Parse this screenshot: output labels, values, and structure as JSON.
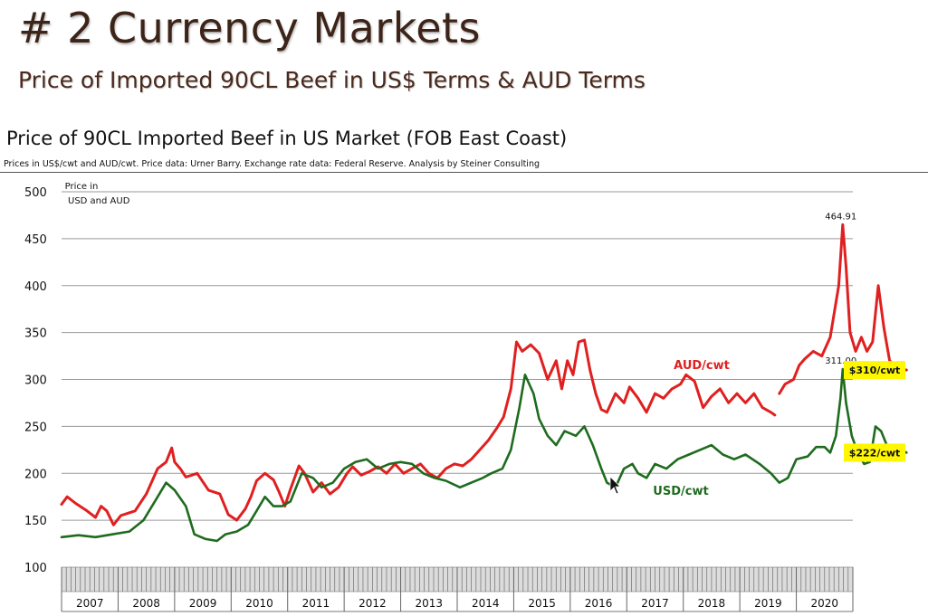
{
  "slide": {
    "title": "# 2 Currency Markets",
    "subtitle": "Price of Imported 90CL Beef in US$ Terms & AUD Terms"
  },
  "chart_data": {
    "type": "line",
    "title": "Price of 90CL Imported Beef in US Market (FOB East Coast)",
    "subtitle": "Prices in US$/cwt and AUD/cwt.  Price data:  Urner Barry.  Exchange rate data: Federal Reserve.  Analysis by Steiner Consulting",
    "ylabel_line1": "Price in",
    "ylabel_line2": "USD and AUD",
    "ylim": [
      100,
      500
    ],
    "y_ticks": [
      "100",
      "150",
      "200",
      "250",
      "300",
      "350",
      "400",
      "450",
      "500"
    ],
    "x_start": 2007.0,
    "x_end": 2021.0,
    "x_tick_labels": [
      "2007",
      "2008",
      "2009",
      "2010",
      "2011",
      "2012",
      "2013",
      "2014",
      "2015",
      "2016",
      "2017",
      "2018",
      "2019",
      "2020"
    ],
    "grid": true,
    "series": [
      {
        "name": "AUD/cwt",
        "color": "#e02020",
        "end_label": "$310/cwt",
        "points": [
          [
            2007.0,
            167
          ],
          [
            2007.1,
            175
          ],
          [
            2007.25,
            168
          ],
          [
            2007.45,
            160
          ],
          [
            2007.6,
            153
          ],
          [
            2007.7,
            165
          ],
          [
            2007.8,
            160
          ],
          [
            2007.92,
            145
          ],
          [
            2008.05,
            155
          ],
          [
            2008.3,
            160
          ],
          [
            2008.5,
            178
          ],
          [
            2008.7,
            205
          ],
          [
            2008.85,
            212
          ],
          [
            2008.95,
            227
          ],
          [
            2009.0,
            212
          ],
          [
            2009.1,
            205
          ],
          [
            2009.2,
            196
          ],
          [
            2009.4,
            200
          ],
          [
            2009.6,
            182
          ],
          [
            2009.8,
            178
          ],
          [
            2009.95,
            156
          ],
          [
            2010.1,
            150
          ],
          [
            2010.25,
            162
          ],
          [
            2010.35,
            175
          ],
          [
            2010.45,
            192
          ],
          [
            2010.6,
            200
          ],
          [
            2010.75,
            193
          ],
          [
            2010.85,
            180
          ],
          [
            2010.95,
            165
          ],
          [
            2011.05,
            183
          ],
          [
            2011.2,
            208
          ],
          [
            2011.3,
            200
          ],
          [
            2011.45,
            180
          ],
          [
            2011.6,
            190
          ],
          [
            2011.75,
            178
          ],
          [
            2011.9,
            185
          ],
          [
            2012.05,
            200
          ],
          [
            2012.15,
            207
          ],
          [
            2012.3,
            198
          ],
          [
            2012.45,
            202
          ],
          [
            2012.6,
            207
          ],
          [
            2012.75,
            200
          ],
          [
            2012.9,
            210
          ],
          [
            2013.05,
            200
          ],
          [
            2013.2,
            205
          ],
          [
            2013.35,
            210
          ],
          [
            2013.5,
            200
          ],
          [
            2013.65,
            195
          ],
          [
            2013.8,
            205
          ],
          [
            2013.95,
            210
          ],
          [
            2014.1,
            208
          ],
          [
            2014.25,
            215
          ],
          [
            2014.4,
            225
          ],
          [
            2014.55,
            235
          ],
          [
            2014.7,
            248
          ],
          [
            2014.82,
            260
          ],
          [
            2014.95,
            290
          ],
          [
            2015.05,
            340
          ],
          [
            2015.15,
            330
          ],
          [
            2015.3,
            337
          ],
          [
            2015.45,
            328
          ],
          [
            2015.6,
            300
          ],
          [
            2015.75,
            320
          ],
          [
            2015.85,
            290
          ],
          [
            2015.95,
            320
          ],
          [
            2016.05,
            305
          ],
          [
            2016.15,
            340
          ],
          [
            2016.25,
            342
          ],
          [
            2016.35,
            310
          ],
          [
            2016.45,
            285
          ],
          [
            2016.55,
            268
          ],
          [
            2016.65,
            265
          ],
          [
            2016.8,
            285
          ],
          [
            2016.95,
            275
          ],
          [
            2017.05,
            292
          ],
          [
            2017.2,
            280
          ],
          [
            2017.35,
            265
          ],
          [
            2017.5,
            285
          ],
          [
            2017.65,
            280
          ],
          [
            2017.8,
            290
          ],
          [
            2017.95,
            295
          ],
          [
            2018.05,
            305
          ],
          [
            2018.2,
            298
          ],
          [
            2018.35,
            270
          ],
          [
            2018.5,
            282
          ],
          [
            2018.65,
            290
          ],
          [
            2018.8,
            275
          ],
          [
            2018.95,
            285
          ],
          [
            2019.1,
            275
          ],
          [
            2019.25,
            285
          ],
          [
            2019.4,
            270
          ],
          [
            2019.55,
            265
          ],
          [
            2019.62,
            262
          ],
          null,
          [
            2019.7,
            285
          ],
          [
            2019.8,
            295
          ],
          [
            2019.95,
            300
          ],
          [
            2020.05,
            315
          ],
          [
            2020.15,
            322
          ],
          [
            2020.3,
            330
          ],
          [
            2020.45,
            325
          ],
          [
            2020.6,
            345
          ],
          [
            2020.75,
            400
          ],
          [
            2020.82,
            464.91
          ],
          [
            2020.88,
            420
          ],
          [
            2020.95,
            350
          ],
          [
            2021.05,
            330
          ],
          [
            2021.15,
            345
          ],
          [
            2021.25,
            330
          ],
          [
            2021.35,
            340
          ],
          [
            2021.45,
            400
          ],
          [
            2021.55,
            355
          ],
          [
            2021.65,
            320
          ],
          [
            2021.8,
            312
          ],
          [
            2021.95,
            310
          ]
        ]
      },
      {
        "name": "USD/cwt",
        "color": "#1e6b1e",
        "end_label": "$222/cwt",
        "points": [
          [
            2007.0,
            132
          ],
          [
            2007.3,
            134
          ],
          [
            2007.6,
            132
          ],
          [
            2007.9,
            135
          ],
          [
            2008.2,
            138
          ],
          [
            2008.45,
            150
          ],
          [
            2008.65,
            170
          ],
          [
            2008.85,
            190
          ],
          [
            2009.0,
            182
          ],
          [
            2009.2,
            165
          ],
          [
            2009.35,
            135
          ],
          [
            2009.55,
            130
          ],
          [
            2009.75,
            128
          ],
          [
            2009.9,
            135
          ],
          [
            2010.1,
            138
          ],
          [
            2010.3,
            145
          ],
          [
            2010.45,
            160
          ],
          [
            2010.6,
            175
          ],
          [
            2010.75,
            165
          ],
          [
            2010.9,
            165
          ],
          [
            2011.05,
            170
          ],
          [
            2011.25,
            200
          ],
          [
            2011.45,
            195
          ],
          [
            2011.6,
            185
          ],
          [
            2011.8,
            190
          ],
          [
            2012.0,
            205
          ],
          [
            2012.2,
            212
          ],
          [
            2012.4,
            215
          ],
          [
            2012.6,
            205
          ],
          [
            2012.8,
            210
          ],
          [
            2013.0,
            212
          ],
          [
            2013.2,
            210
          ],
          [
            2013.4,
            200
          ],
          [
            2013.6,
            195
          ],
          [
            2013.8,
            192
          ],
          [
            2014.05,
            185
          ],
          [
            2014.25,
            190
          ],
          [
            2014.45,
            195
          ],
          [
            2014.6,
            200
          ],
          [
            2014.8,
            205
          ],
          [
            2014.95,
            225
          ],
          [
            2015.1,
            270
          ],
          [
            2015.2,
            305
          ],
          [
            2015.35,
            285
          ],
          [
            2015.45,
            258
          ],
          [
            2015.6,
            240
          ],
          [
            2015.75,
            230
          ],
          [
            2015.9,
            245
          ],
          [
            2016.1,
            240
          ],
          [
            2016.25,
            250
          ],
          [
            2016.4,
            230
          ],
          [
            2016.55,
            205
          ],
          [
            2016.65,
            190
          ],
          [
            2016.8,
            185
          ],
          [
            2016.95,
            205
          ],
          [
            2017.1,
            210
          ],
          [
            2017.2,
            200
          ],
          [
            2017.35,
            195
          ],
          [
            2017.5,
            210
          ],
          [
            2017.7,
            205
          ],
          [
            2017.9,
            215
          ],
          [
            2018.1,
            220
          ],
          [
            2018.3,
            225
          ],
          [
            2018.5,
            230
          ],
          [
            2018.7,
            220
          ],
          [
            2018.9,
            215
          ],
          [
            2019.1,
            220
          ],
          [
            2019.35,
            210
          ],
          [
            2019.55,
            200
          ],
          [
            2019.7,
            190
          ],
          [
            2019.85,
            195
          ],
          [
            2020.0,
            215
          ],
          [
            2020.2,
            218
          ],
          [
            2020.35,
            228
          ],
          [
            2020.5,
            228
          ],
          [
            2020.6,
            222
          ],
          [
            2020.7,
            240
          ],
          [
            2020.78,
            280
          ],
          [
            2020.82,
            311
          ],
          [
            2020.88,
            275
          ],
          [
            2020.98,
            240
          ],
          [
            2021.1,
            220
          ],
          [
            2021.2,
            210
          ],
          [
            2021.3,
            212
          ],
          [
            2021.4,
            250
          ],
          [
            2021.5,
            245
          ],
          [
            2021.6,
            230
          ],
          [
            2021.75,
            228
          ],
          [
            2021.95,
            222
          ]
        ]
      }
    ],
    "annotations": [
      {
        "text": "464.91",
        "x": 2020.82,
        "y": 464.91
      },
      {
        "text": "311.00",
        "x": 2020.82,
        "y": 311.0
      }
    ]
  }
}
